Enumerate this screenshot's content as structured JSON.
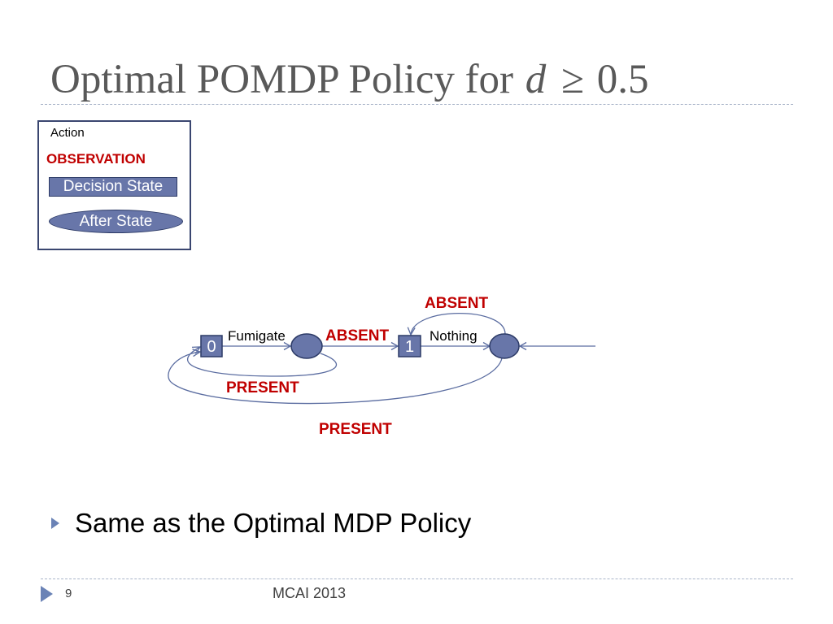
{
  "title": {
    "text": "Optimal POMDP Policy for",
    "variable": "d",
    "relation": "≥",
    "threshold": "0.5"
  },
  "legend": {
    "action": "Action",
    "observation": "OBSERVATION",
    "decision_state": "Decision State",
    "after_state": "After State"
  },
  "diagram": {
    "nodes": [
      {
        "label": "0",
        "decision": true
      },
      {
        "decision": false
      },
      {
        "label": "1",
        "decision": true
      },
      {
        "decision": false
      }
    ],
    "edges": [
      {
        "from": 0,
        "to": 1,
        "label": "Fumigate",
        "observation": false
      },
      {
        "from": 1,
        "to": 2,
        "label": "ABSENT",
        "observation": true
      },
      {
        "from": 2,
        "to": 3,
        "label": "Nothing",
        "observation": false
      },
      {
        "from": 3,
        "to": 2,
        "label": "ABSENT",
        "observation": true
      },
      {
        "from": 1,
        "to": 0,
        "label": "PRESENT",
        "observation": true
      },
      {
        "from": 3,
        "to": 0,
        "label": "PRESENT",
        "observation": true
      },
      {
        "from": null,
        "to": 3
      }
    ]
  },
  "bullets": [
    {
      "icon": "triangle-right-bullet-icon",
      "text": "Same as the Optimal MDP Policy"
    }
  ],
  "footer": {
    "icon": "triangle-right-icon",
    "page_number": "9",
    "text": "MCAI 2013"
  },
  "colors": {
    "title": "#595959",
    "body_text": "#000000",
    "node_fill": "#6876a9",
    "node_border": "#2c3a66",
    "legend_border": "#3a4670",
    "observation": "#c00000",
    "edge": "#5a6ca0",
    "divider": "#a9b4c9",
    "accent": "#6b83b6",
    "footer_text": "#404040"
  }
}
